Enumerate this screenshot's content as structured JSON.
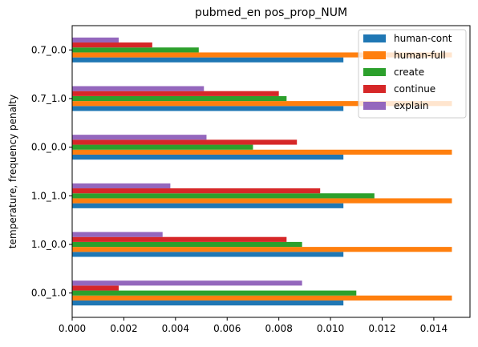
{
  "chart_data": {
    "type": "bar",
    "orientation": "horizontal",
    "title": "pubmed_en pos_prop_NUM",
    "xlabel": "",
    "ylabel": "temperature, frequency penalty",
    "categories": [
      "0.0_1.0",
      "1.0_0.0",
      "1.0_1.0",
      "0.0_0.0",
      "0.7_1.0",
      "0.7_0.0"
    ],
    "xlim": [
      0,
      0.0154
    ],
    "xticks": [
      "0.000",
      "0.002",
      "0.004",
      "0.006",
      "0.008",
      "0.010",
      "0.012",
      "0.014"
    ],
    "grid": false,
    "legend_position": "top-right",
    "series": [
      {
        "name": "human-cont",
        "color": "#1f77b4",
        "values": [
          0.0105,
          0.0105,
          0.0105,
          0.0105,
          0.0105,
          0.0105
        ]
      },
      {
        "name": "human-full",
        "color": "#ff7f0e",
        "values": [
          0.0147,
          0.0147,
          0.0147,
          0.0147,
          0.0147,
          0.0147
        ]
      },
      {
        "name": "create",
        "color": "#2ca02c",
        "values": [
          0.011,
          0.0089,
          0.0117,
          0.007,
          0.0083,
          0.0049
        ]
      },
      {
        "name": "continue",
        "color": "#d62728",
        "values": [
          0.0018,
          0.0083,
          0.0096,
          0.0087,
          0.008,
          0.0031
        ]
      },
      {
        "name": "explain",
        "color": "#9467bd",
        "values": [
          0.0089,
          0.0035,
          0.0038,
          0.0052,
          0.0051,
          0.0018
        ]
      }
    ]
  }
}
